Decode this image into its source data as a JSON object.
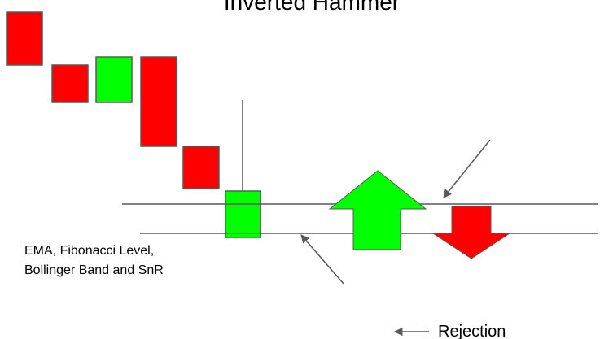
{
  "title": "Inverted Hammer",
  "annotations": {
    "indicators": [
      "EMA, Fibonacci Level,",
      "Bollinger Band and SnR"
    ],
    "rejection": "Rejection"
  }
}
